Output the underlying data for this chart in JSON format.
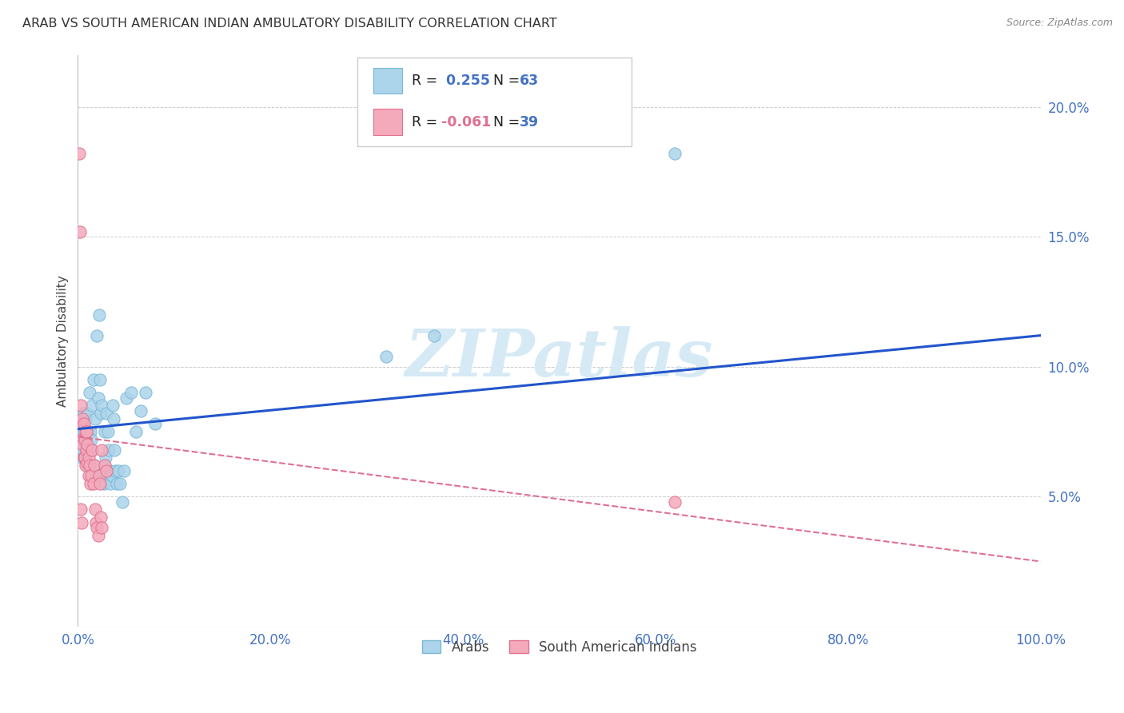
{
  "title": "ARAB VS SOUTH AMERICAN INDIAN AMBULATORY DISABILITY CORRELATION CHART",
  "source": "Source: ZipAtlas.com",
  "ylabel": "Ambulatory Disability",
  "xlim": [
    0,
    1.0
  ],
  "ylim": [
    0,
    0.22
  ],
  "ytick_vals": [
    0.05,
    0.1,
    0.15,
    0.2
  ],
  "ytick_labels": [
    "5.0%",
    "10.0%",
    "15.0%",
    "20.0%"
  ],
  "xtick_vals": [
    0.0,
    0.2,
    0.4,
    0.6,
    0.8,
    1.0
  ],
  "xtick_labels": [
    "0.0%",
    "20.0%",
    "40.0%",
    "60.0%",
    "80.0%",
    "100.0%"
  ],
  "arab_color": "#acd4ea",
  "arab_edge_color": "#7bb8d8",
  "south_color": "#f4aabb",
  "south_edge_color": "#e07090",
  "trend_arab_color": "#2255cc",
  "trend_south_color": "#e07090",
  "watermark": "ZIPatlas",
  "watermark_color": "#d6eaf5",
  "arab_trend_y0": 0.076,
  "arab_trend_y1": 0.112,
  "south_trend_y0": 0.073,
  "south_trend_y1": 0.025,
  "arab_points": [
    [
      0.001,
      0.075
    ],
    [
      0.002,
      0.068
    ],
    [
      0.003,
      0.072
    ],
    [
      0.003,
      0.078
    ],
    [
      0.004,
      0.065
    ],
    [
      0.004,
      0.07
    ],
    [
      0.005,
      0.08
    ],
    [
      0.005,
      0.068
    ],
    [
      0.006,
      0.075
    ],
    [
      0.006,
      0.082
    ],
    [
      0.007,
      0.072
    ],
    [
      0.007,
      0.065
    ],
    [
      0.008,
      0.08
    ],
    [
      0.008,
      0.07
    ],
    [
      0.009,
      0.075
    ],
    [
      0.009,
      0.068
    ],
    [
      0.01,
      0.082
    ],
    [
      0.01,
      0.062
    ],
    [
      0.011,
      0.075
    ],
    [
      0.011,
      0.068
    ],
    [
      0.012,
      0.09
    ],
    [
      0.013,
      0.075
    ],
    [
      0.014,
      0.072
    ],
    [
      0.015,
      0.085
    ],
    [
      0.015,
      0.068
    ],
    [
      0.016,
      0.095
    ],
    [
      0.017,
      0.062
    ],
    [
      0.018,
      0.08
    ],
    [
      0.019,
      0.058
    ],
    [
      0.02,
      0.112
    ],
    [
      0.021,
      0.088
    ],
    [
      0.022,
      0.12
    ],
    [
      0.023,
      0.095
    ],
    [
      0.024,
      0.082
    ],
    [
      0.025,
      0.085
    ],
    [
      0.026,
      0.06
    ],
    [
      0.027,
      0.055
    ],
    [
      0.028,
      0.075
    ],
    [
      0.029,
      0.065
    ],
    [
      0.03,
      0.082
    ],
    [
      0.031,
      0.075
    ],
    [
      0.032,
      0.068
    ],
    [
      0.033,
      0.06
    ],
    [
      0.034,
      0.055
    ],
    [
      0.035,
      0.058
    ],
    [
      0.036,
      0.085
    ],
    [
      0.037,
      0.08
    ],
    [
      0.038,
      0.068
    ],
    [
      0.039,
      0.06
    ],
    [
      0.04,
      0.055
    ],
    [
      0.042,
      0.06
    ],
    [
      0.044,
      0.055
    ],
    [
      0.046,
      0.048
    ],
    [
      0.048,
      0.06
    ],
    [
      0.05,
      0.088
    ],
    [
      0.055,
      0.09
    ],
    [
      0.06,
      0.075
    ],
    [
      0.065,
      0.083
    ],
    [
      0.07,
      0.09
    ],
    [
      0.08,
      0.078
    ],
    [
      0.62,
      0.182
    ],
    [
      0.37,
      0.112
    ],
    [
      0.32,
      0.104
    ]
  ],
  "south_points": [
    [
      0.001,
      0.182
    ],
    [
      0.002,
      0.152
    ],
    [
      0.003,
      0.085
    ],
    [
      0.004,
      0.078
    ],
    [
      0.004,
      0.072
    ],
    [
      0.005,
      0.08
    ],
    [
      0.005,
      0.07
    ],
    [
      0.006,
      0.078
    ],
    [
      0.006,
      0.065
    ],
    [
      0.007,
      0.072
    ],
    [
      0.007,
      0.065
    ],
    [
      0.008,
      0.075
    ],
    [
      0.008,
      0.062
    ],
    [
      0.009,
      0.075
    ],
    [
      0.009,
      0.068
    ],
    [
      0.01,
      0.063
    ],
    [
      0.01,
      0.07
    ],
    [
      0.011,
      0.058
    ],
    [
      0.011,
      0.065
    ],
    [
      0.012,
      0.062
    ],
    [
      0.013,
      0.055
    ],
    [
      0.014,
      0.058
    ],
    [
      0.015,
      0.068
    ],
    [
      0.016,
      0.055
    ],
    [
      0.017,
      0.062
    ],
    [
      0.018,
      0.045
    ],
    [
      0.019,
      0.04
    ],
    [
      0.02,
      0.038
    ],
    [
      0.021,
      0.035
    ],
    [
      0.022,
      0.058
    ],
    [
      0.023,
      0.055
    ],
    [
      0.024,
      0.042
    ],
    [
      0.025,
      0.038
    ],
    [
      0.003,
      0.045
    ],
    [
      0.004,
      0.04
    ],
    [
      0.025,
      0.068
    ],
    [
      0.028,
      0.062
    ],
    [
      0.03,
      0.06
    ],
    [
      0.62,
      0.048
    ]
  ]
}
